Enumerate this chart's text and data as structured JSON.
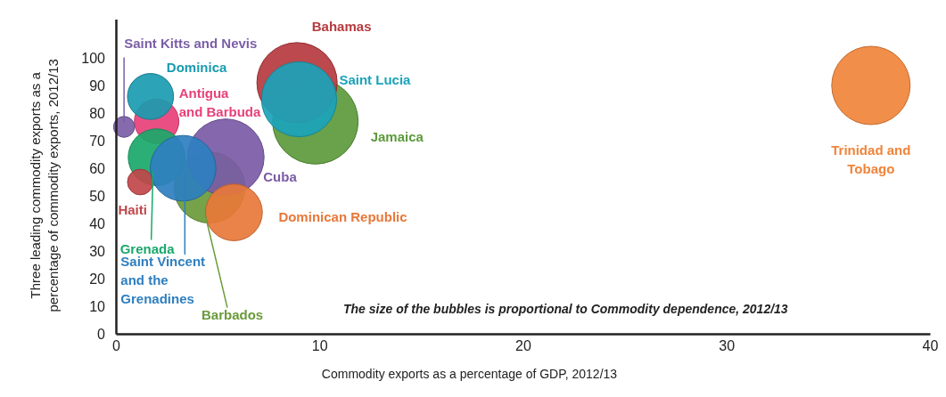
{
  "chart_data": {
    "type": "bubble",
    "xlabel": "Commodity exports as a percentage of GDP, 2012/13",
    "ylabel": "Three leading commodity exports as a percentage of commodity exports, 2012/13",
    "xlim": [
      0,
      40
    ],
    "xticks": [
      0,
      10,
      20,
      30,
      40
    ],
    "ylim": [
      0,
      114
    ],
    "yticks": [
      0,
      10,
      20,
      30,
      40,
      50,
      60,
      70,
      80,
      90,
      100
    ],
    "grid": false,
    "legend": false,
    "annotations": [
      "The size of the bubbles is proportional to Commodity dependence, 2012/13"
    ],
    "series": [
      {
        "name": "Jamaica",
        "color": "#5c9a3c",
        "x": [
          9.8
        ],
        "values": [
          77
        ],
        "sizes": [
          1
        ]
      },
      {
        "name": "Bahamas",
        "color": "#b53a3e",
        "x": [
          8.9
        ],
        "values": [
          91
        ],
        "sizes": [
          0.88
        ]
      },
      {
        "name": "Saint Lucia",
        "color": "#1ba3ba",
        "x": [
          9.0
        ],
        "values": [
          85
        ],
        "sizes": [
          0.77
        ]
      },
      {
        "name": "Antigua and Barbuda",
        "color": "#e8407a",
        "x": [
          2.0
        ],
        "values": [
          77
        ],
        "sizes": [
          0.27
        ]
      },
      {
        "name": "Barbados",
        "color": "#6a9a3a",
        "x": [
          4.6
        ],
        "values": [
          53
        ],
        "sizes": [
          0.69
        ]
      },
      {
        "name": "Cuba",
        "color": "#7a5aa6",
        "x": [
          5.4
        ],
        "values": [
          64
        ],
        "sizes": [
          0.8
        ]
      },
      {
        "name": "Dominican Republic",
        "color": "#e8783a",
        "x": [
          5.8
        ],
        "values": [
          44
        ],
        "sizes": [
          0.44
        ]
      },
      {
        "name": "Grenada",
        "color": "#1aa86a",
        "x": [
          2.0
        ],
        "values": [
          64
        ],
        "sizes": [
          0.44
        ]
      },
      {
        "name": "Haiti",
        "color": "#c0474a",
        "x": [
          1.2
        ],
        "values": [
          55
        ],
        "sizes": [
          0.09
        ]
      },
      {
        "name": "Saint Vincent and the Grenadines",
        "color": "#2e7fc0",
        "x": [
          3.3
        ],
        "values": [
          60
        ],
        "sizes": [
          0.59
        ]
      },
      {
        "name": "Dominica",
        "color": "#1a9bb0",
        "x": [
          1.7
        ],
        "values": [
          86
        ],
        "sizes": [
          0.29
        ]
      },
      {
        "name": "Saint Kitts and Nevis",
        "color": "#7b5ea7",
        "x": [
          0.4
        ],
        "values": [
          75
        ],
        "sizes": [
          0.06
        ]
      },
      {
        "name": "Trinidad and Tobago",
        "color": "#f0843a",
        "x": [
          37.1
        ],
        "values": [
          90
        ],
        "sizes": [
          0.84
        ]
      }
    ]
  }
}
